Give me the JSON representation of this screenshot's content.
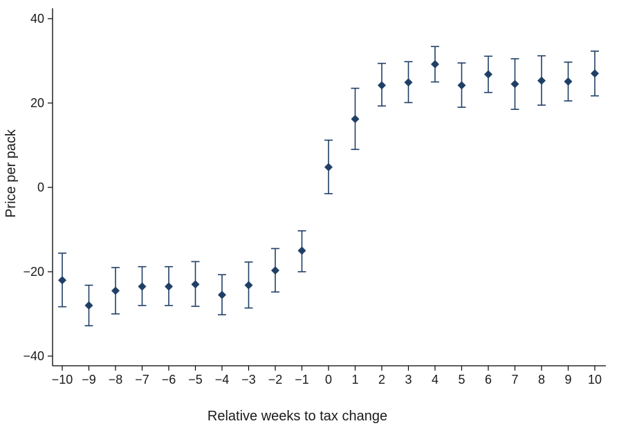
{
  "chart_data": {
    "type": "scatter",
    "title": "",
    "xlabel": "Relative weeks to tax change",
    "ylabel": "Price per pack",
    "xlim": [
      -10,
      10
    ],
    "ylim": [
      -40,
      40
    ],
    "x_ticks": [
      -10,
      -9,
      -8,
      -7,
      -6,
      -5,
      -4,
      -3,
      -2,
      -1,
      0,
      1,
      2,
      3,
      4,
      5,
      6,
      7,
      8,
      9,
      10
    ],
    "x_tick_labels": [
      "−10",
      "−9",
      "−8",
      "−7",
      "−6",
      "−5",
      "−4",
      "−3",
      "−2",
      "−1",
      "0",
      "1",
      "2",
      "3",
      "4",
      "5",
      "6",
      "7",
      "8",
      "9",
      "10"
    ],
    "y_ticks": [
      -40,
      -20,
      0,
      20,
      40
    ],
    "y_tick_labels": [
      "−40",
      "−20",
      "0",
      "20",
      "40"
    ],
    "grid": false,
    "marker_color": "#1f3f66",
    "error_bar_color": "#1f3f66",
    "series": [
      {
        "x": [
          -10,
          -9,
          -8,
          -7,
          -6,
          -5,
          -4,
          -3,
          -2,
          -1,
          0,
          1,
          2,
          3,
          4,
          5,
          6,
          7,
          8,
          9,
          10
        ],
        "y": [
          -22,
          -28,
          -24.5,
          -23.5,
          -23.5,
          -23,
          -25.5,
          -23.2,
          -19.7,
          -15,
          4.8,
          16.2,
          24.2,
          24.9,
          29.2,
          24.2,
          26.8,
          24.5,
          25.3,
          25.1,
          27
        ],
        "y_lower": [
          -28.3,
          -32.8,
          -30,
          -28,
          -28,
          -28.2,
          -30.2,
          -28.6,
          -24.8,
          -20,
          -1.5,
          9,
          19.3,
          20.1,
          25,
          19,
          22.5,
          18.5,
          19.5,
          20.5,
          21.7
        ],
        "y_upper": [
          -15.6,
          -23.2,
          -19,
          -18.8,
          -18.8,
          -17.6,
          -20.7,
          -17.7,
          -14.5,
          -10.3,
          11.2,
          23.5,
          29.4,
          29.8,
          33.4,
          29.5,
          31.1,
          30.5,
          31.2,
          29.7,
          32.3
        ]
      }
    ]
  }
}
